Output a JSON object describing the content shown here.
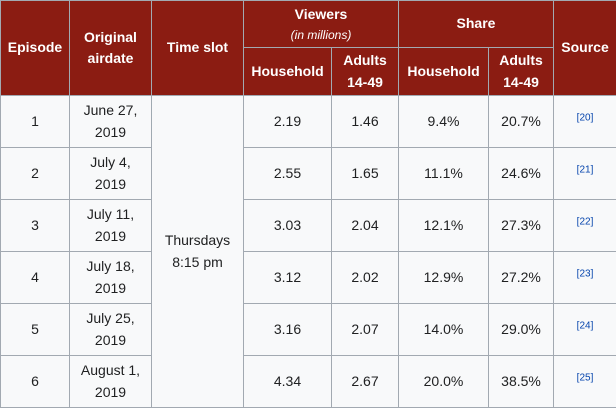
{
  "headers": {
    "episode": "Episode",
    "airdate": "Original airdate",
    "timeslot": "Time slot",
    "viewers": "Viewers",
    "viewers_note": "(in millions)",
    "share": "Share",
    "source": "Source",
    "household": "Household",
    "adults": "Adults 14-49"
  },
  "timeslot": "Thursdays 8:15 pm",
  "rows": [
    {
      "episode": "1",
      "airdate": "June 27, 2019",
      "v_household": "2.19",
      "v_adults": "1.46",
      "s_household": "9.4%",
      "s_adults": "20.7%",
      "source": "[20]"
    },
    {
      "episode": "2",
      "airdate": "July 4, 2019",
      "v_household": "2.55",
      "v_adults": "1.65",
      "s_household": "11.1%",
      "s_adults": "24.6%",
      "source": "[21]"
    },
    {
      "episode": "3",
      "airdate": "July 11, 2019",
      "v_household": "3.03",
      "v_adults": "2.04",
      "s_household": "12.1%",
      "s_adults": "27.3%",
      "source": "[22]"
    },
    {
      "episode": "4",
      "airdate": "July 18, 2019",
      "v_household": "3.12",
      "v_adults": "2.02",
      "s_household": "12.9%",
      "s_adults": "27.2%",
      "source": "[23]"
    },
    {
      "episode": "5",
      "airdate": "July 25, 2019",
      "v_household": "3.16",
      "v_adults": "2.07",
      "s_household": "14.0%",
      "s_adults": "29.0%",
      "source": "[24]"
    },
    {
      "episode": "6",
      "airdate": "August 1, 2019",
      "v_household": "4.34",
      "v_adults": "2.67",
      "s_household": "20.0%",
      "s_adults": "38.5%",
      "source": "[25]"
    }
  ]
}
